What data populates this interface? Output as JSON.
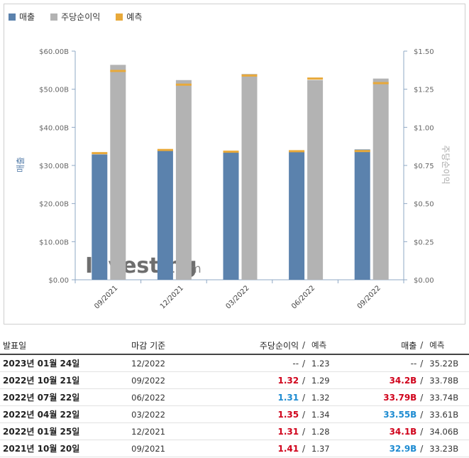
{
  "legend": {
    "items": [
      {
        "label": "매출",
        "color": "#5b82ad"
      },
      {
        "label": "주당순이익",
        "color": "#b3b3b3"
      },
      {
        "label": "예측",
        "color": "#e8a93a"
      }
    ]
  },
  "watermark": {
    "brand": "Investing",
    "suffix": ".com"
  },
  "chart_data": {
    "type": "bar",
    "categories": [
      "09/2021",
      "12/2021",
      "03/2022",
      "06/2022",
      "09/2022"
    ],
    "ylabel": "매출",
    "y2label": "주당순이익",
    "ylim": [
      0,
      60
    ],
    "y2lim": [
      0,
      1.5
    ],
    "yticks": [
      "$0.00",
      "$10.00B",
      "$20.00B",
      "$30.00B",
      "$40.00B",
      "$50.00B",
      "$60.00B"
    ],
    "y2ticks": [
      "$0.00",
      "$0.25",
      "$0.50",
      "$0.75",
      "$1.00",
      "$1.25",
      "$1.50"
    ],
    "series": [
      {
        "name": "매출",
        "axis": "left",
        "unit": "B",
        "values": [
          32.9,
          34.1,
          33.55,
          33.79,
          34.2
        ],
        "forecast": [
          33.23,
          34.06,
          33.61,
          33.74,
          33.78
        ]
      },
      {
        "name": "주당순이익",
        "axis": "right",
        "values": [
          1.41,
          1.31,
          1.35,
          1.31,
          1.32
        ],
        "forecast": [
          1.37,
          1.28,
          1.34,
          1.32,
          1.29
        ]
      }
    ],
    "grid": false,
    "legend_position": "top-left"
  },
  "table": {
    "headers": {
      "date": "발표일",
      "period": "마감 기준",
      "eps": "주당순이익",
      "sep": "/",
      "eps_forecast": "예측",
      "revenue": "매출",
      "revenue_forecast": "예측"
    },
    "rows": [
      {
        "date": "2023년 01월 24일",
        "period": "12/2022",
        "eps": "--",
        "eps_class": "plain",
        "sep": "/",
        "eps_forecast": "1.23",
        "revenue": "--",
        "rev_class": "plain",
        "sep2": "/",
        "revenue_forecast": "35.22B"
      },
      {
        "date": "2022년 10월 21일",
        "period": "09/2022",
        "eps": "1.32",
        "eps_class": "red",
        "sep": "/",
        "eps_forecast": "1.29",
        "revenue": "34.2B",
        "rev_class": "red",
        "sep2": "/",
        "revenue_forecast": "33.78B"
      },
      {
        "date": "2022년 07월 22일",
        "period": "06/2022",
        "eps": "1.31",
        "eps_class": "blue",
        "sep": "/",
        "eps_forecast": "1.32",
        "revenue": "33.79B",
        "rev_class": "red",
        "sep2": "/",
        "revenue_forecast": "33.74B"
      },
      {
        "date": "2022년 04월 22일",
        "period": "03/2022",
        "eps": "1.35",
        "eps_class": "red",
        "sep": "/",
        "eps_forecast": "1.34",
        "revenue": "33.55B",
        "rev_class": "blue",
        "sep2": "/",
        "revenue_forecast": "33.61B"
      },
      {
        "date": "2022년 01월 25일",
        "period": "12/2021",
        "eps": "1.31",
        "eps_class": "red",
        "sep": "/",
        "eps_forecast": "1.28",
        "revenue": "34.1B",
        "rev_class": "red",
        "sep2": "/",
        "revenue_forecast": "34.06B"
      },
      {
        "date": "2021년 10월 20일",
        "period": "09/2021",
        "eps": "1.41",
        "eps_class": "red",
        "sep": "/",
        "eps_forecast": "1.37",
        "revenue": "32.9B",
        "rev_class": "blue",
        "sep2": "/",
        "revenue_forecast": "33.23B"
      }
    ]
  }
}
